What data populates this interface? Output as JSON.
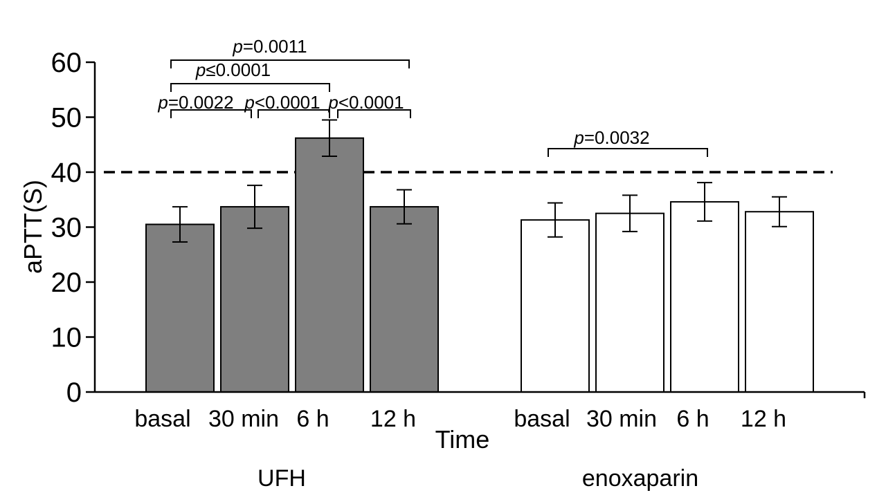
{
  "chart_data": {
    "type": "bar",
    "ylabel": "aPTT(S)",
    "xlabel": "Time",
    "ylim": [
      0,
      60
    ],
    "yticks": [
      0,
      10,
      20,
      30,
      40,
      50,
      60
    ],
    "reference_line": {
      "y": 40,
      "style": "dashed"
    },
    "groups": [
      {
        "name": "UFH",
        "fill": "#7f7f7f",
        "categories": [
          "basal",
          "30 min",
          "6 h",
          "12 h"
        ],
        "values": [
          30.5,
          33.7,
          46.2,
          33.7
        ],
        "errors": [
          3.2,
          3.9,
          3.3,
          3.1
        ]
      },
      {
        "name": "enoxaparin",
        "fill": "#ffffff",
        "categories": [
          "basal",
          "30 min",
          "6 h",
          "12 h"
        ],
        "values": [
          31.3,
          32.5,
          34.6,
          32.8
        ],
        "errors": [
          3.1,
          3.3,
          3.5,
          2.7
        ]
      }
    ],
    "comparisons": [
      {
        "group": 0,
        "from": 0,
        "to": 3,
        "p_prefix": "p",
        "p_rest": "=0.0011"
      },
      {
        "group": 0,
        "from": 0,
        "to": 2,
        "p_prefix": "p",
        "p_rest": "≤0.0001"
      },
      {
        "group": 0,
        "from": 0,
        "to": 1,
        "p_prefix": "p",
        "p_rest": "=0.0022"
      },
      {
        "group": 0,
        "from": 1,
        "to": 2,
        "p_prefix": "p",
        "p_rest": "<0.0001"
      },
      {
        "group": 0,
        "from": 2,
        "to": 3,
        "p_prefix": "p",
        "p_rest": "<0.0001"
      },
      {
        "group": 1,
        "from": 0,
        "to": 2,
        "p_prefix": "p",
        "p_rest": "=0.0032"
      }
    ]
  }
}
